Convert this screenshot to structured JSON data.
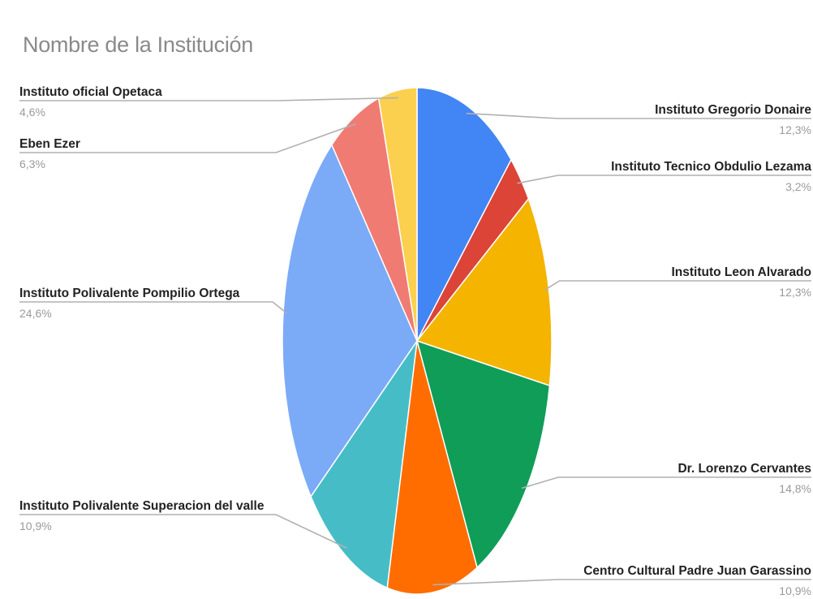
{
  "chart_data": {
    "type": "pie",
    "title": "Nombre de la Institución",
    "start": "top",
    "direction": "clockwise",
    "slices": [
      {
        "label": "Instituto Gregorio Donaire",
        "value": 12.3,
        "value_label": "12,3%",
        "color": "#4285F4",
        "label_side": "right"
      },
      {
        "label": "Instituto Tecnico Obdulio Lezama",
        "value": 3.2,
        "value_label": "3,2%",
        "color": "#DB4437",
        "label_side": "right"
      },
      {
        "label": "Instituto Leon Alvarado",
        "value": 12.3,
        "value_label": "12,3%",
        "color": "#F4B400",
        "label_side": "right"
      },
      {
        "label": "Dr. Lorenzo Cervantes",
        "value": 14.8,
        "value_label": "14,8%",
        "color": "#0F9D58",
        "label_side": "right"
      },
      {
        "label": "Centro Cultural Padre Juan Garassino",
        "value": 10.9,
        "value_label": "10,9%",
        "color": "#FF6D01",
        "label_side": "right"
      },
      {
        "label": "Instituto Polivalente Superacion del valle",
        "value": 10.9,
        "value_label": "10,9%",
        "color": "#46BDC6",
        "label_side": "left"
      },
      {
        "label": "Instituto Polivalente Pompilio Ortega",
        "value": 24.6,
        "value_label": "24,6%",
        "color": "#7BAAF7",
        "label_side": "left"
      },
      {
        "label": "Eben Ezer",
        "value": 6.3,
        "value_label": "6,3%",
        "color": "#F07B72",
        "label_side": "left"
      },
      {
        "label": "Instituto oficial Opetaca",
        "value": 4.6,
        "value_label": "4,6%",
        "color": "#FCD04F",
        "label_side": "left"
      }
    ]
  }
}
